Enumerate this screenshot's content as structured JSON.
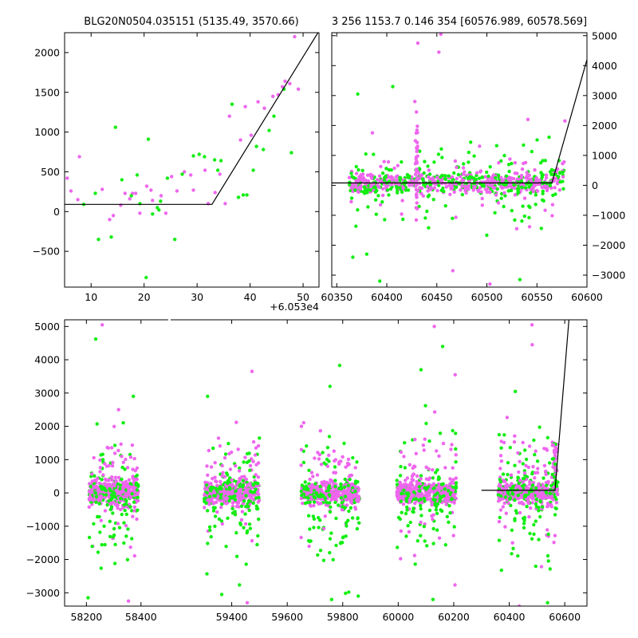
{
  "chart_data": [
    {
      "type": "scatter",
      "title": "BLG20N0504.035151 (5135.49, 3570.66)",
      "xlim": [
        5,
        53
      ],
      "ylim": [
        -950,
        2250
      ],
      "xticks": [
        10,
        20,
        30,
        40,
        50
      ],
      "yticks": [
        -500,
        0,
        500,
        1000,
        1500,
        2000
      ],
      "x_offset_label": "+6.053e4",
      "colors": {
        "series_a": "#ee66ee",
        "series_b": "#11ee11",
        "model": "#000000"
      },
      "series": [
        {
          "color_key": "series_a",
          "x": [
            5.5,
            6.2,
            7.5,
            7.8,
            12.1,
            13.5,
            14.2,
            15.6,
            16.4,
            17.3,
            17.8,
            18.4,
            19.2,
            20.5,
            21.3,
            21.6,
            23.2,
            24.1,
            25.2,
            26.2,
            27.6,
            28.8,
            29.3,
            31.5,
            32.1,
            33.4,
            34.3,
            35.3,
            36.1,
            38.2,
            39.1,
            40.2,
            41.5,
            42.7,
            44.3,
            45.3,
            46.1,
            46.6,
            47.5,
            48.4,
            49.1
          ],
          "y": [
            420,
            260,
            150,
            690,
            280,
            -100,
            -50,
            80,
            230,
            160,
            230,
            230,
            -20,
            320,
            270,
            140,
            200,
            -20,
            440,
            260,
            500,
            460,
            270,
            520,
            100,
            240,
            470,
            100,
            1200,
            900,
            1320,
            960,
            1380,
            1300,
            1450,
            1470,
            1570,
            1640,
            1610,
            2200,
            1540
          ]
        },
        {
          "color_key": "series_b",
          "x": [
            8.6,
            10.8,
            13.8,
            14.6,
            15.8,
            17.6,
            18.7,
            19.2,
            20.4,
            20.8,
            21.6,
            22.5,
            23.1,
            24.4,
            25.8,
            27.2,
            29.3,
            30.4,
            31.4,
            33.3,
            34.5,
            36.6,
            37.8,
            38.7,
            39.4,
            40.6,
            42.5,
            43.6,
            44.5,
            46.4,
            47.8
          ],
          "y": [
            90,
            230,
            -320,
            1060,
            400,
            200,
            460,
            100,
            -830,
            910,
            -30,
            50,
            130,
            420,
            -350,
            470,
            700,
            720,
            690,
            650,
            640,
            1350,
            180,
            210,
            210,
            520,
            780,
            1020,
            1200,
            1540,
            740
          ]
        },
        {
          "color_key": "series_b",
          "x": [
            11.4,
            22.8,
            33.9,
            41.2
          ],
          "y": [
            -350,
            20,
            520,
            820
          ]
        }
      ],
      "model_line": {
        "x": [
          5,
          32.8,
          52.8
        ],
        "y": [
          90,
          90,
          2250
        ]
      }
    },
    {
      "type": "scatter",
      "title": "3 256 1153.7 0.146 354 [60576.989, 60578.569]",
      "xlim": [
        60345,
        60600
      ],
      "ylim": [
        -3400,
        5100
      ],
      "xticks": [
        60350,
        60400,
        60450,
        60500,
        60550,
        60600
      ],
      "yticks": [
        -3000,
        -2000,
        -1000,
        0,
        1000,
        2000,
        3000,
        4000,
        5000
      ],
      "model_line": {
        "x": [
          60345,
          60565,
          60600
        ],
        "y": [
          80,
          80,
          4200
        ]
      },
      "outliers": [
        {
          "c": "series_a",
          "x": 60431,
          "y": 4750
        },
        {
          "c": "series_a",
          "x": 60454,
          "y": 5050
        },
        {
          "c": "series_a",
          "x": 60452,
          "y": 4450
        },
        {
          "c": "series_b",
          "x": 60371,
          "y": 3050
        },
        {
          "c": "series_b",
          "x": 60406,
          "y": 3300
        },
        {
          "c": "series_a",
          "x": 60428,
          "y": 2800
        },
        {
          "c": "series_a",
          "x": 60541,
          "y": 2200
        },
        {
          "c": "series_a",
          "x": 60578,
          "y": 2150
        },
        {
          "c": "series_b",
          "x": 60366,
          "y": -2400
        },
        {
          "c": "series_b",
          "x": 60380,
          "y": -2300
        },
        {
          "c": "series_b",
          "x": 60393,
          "y": -3200
        },
        {
          "c": "series_a",
          "x": 60466,
          "y": -2850
        },
        {
          "c": "series_b",
          "x": 60474,
          "y": -3450
        },
        {
          "c": "series_b",
          "x": 60533,
          "y": -3150
        },
        {
          "c": "series_a",
          "x": 60503,
          "y": -3300
        }
      ]
    },
    {
      "type": "scatter",
      "xlim": [
        58120,
        60680
      ],
      "ylim": [
        -3400,
        5200
      ],
      "xticks": [
        58200,
        58400,
        59400,
        59600,
        59800,
        60000,
        60200,
        60400,
        60600
      ],
      "yticks": [
        -3000,
        -2000,
        -1000,
        0,
        1000,
        2000,
        3000,
        4000,
        5000
      ],
      "seasons": [
        {
          "x": [
            58210,
            58390
          ]
        },
        {
          "x": [
            59300,
            59500
          ]
        },
        {
          "x": [
            59650,
            59860
          ]
        },
        {
          "x": [
            59995,
            60210
          ]
        },
        {
          "x": [
            60360,
            60575
          ]
        }
      ],
      "model_line": {
        "x": [
          60300,
          60565,
          60615
        ],
        "y": [
          80,
          80,
          5200
        ]
      },
      "outliers": [
        {
          "c": "series_a",
          "x": 58258,
          "y": 5050
        },
        {
          "c": "series_b",
          "x": 58234,
          "y": 4620
        },
        {
          "c": "series_b",
          "x": 58372,
          "y": 2900
        },
        {
          "c": "series_a",
          "x": 58318,
          "y": 2500
        },
        {
          "c": "series_b",
          "x": 59313,
          "y": 2900
        },
        {
          "c": "series_a",
          "x": 59473,
          "y": 3650
        },
        {
          "c": "series_b",
          "x": 59754,
          "y": 3200
        },
        {
          "c": "series_b",
          "x": 59789,
          "y": 3830
        },
        {
          "c": "series_a",
          "x": 60130,
          "y": 5000
        },
        {
          "c": "series_b",
          "x": 60082,
          "y": 3700
        },
        {
          "c": "series_b",
          "x": 60160,
          "y": 4400
        },
        {
          "c": "series_a",
          "x": 60205,
          "y": 3550
        },
        {
          "c": "series_a",
          "x": 60482,
          "y": 5050
        },
        {
          "c": "series_b",
          "x": 60422,
          "y": 3050
        },
        {
          "c": "series_a",
          "x": 60483,
          "y": 4450
        },
        {
          "c": "series_b",
          "x": 58206,
          "y": -3150
        },
        {
          "c": "series_a",
          "x": 58354,
          "y": -3250
        },
        {
          "c": "series_b",
          "x": 59364,
          "y": -3050
        },
        {
          "c": "series_a",
          "x": 59456,
          "y": -3300
        },
        {
          "c": "series_b",
          "x": 59760,
          "y": -3200
        },
        {
          "c": "series_b",
          "x": 59856,
          "y": -3100
        },
        {
          "c": "series_b",
          "x": 60125,
          "y": -3200
        },
        {
          "c": "series_a",
          "x": 60436,
          "y": -3400
        },
        {
          "c": "series_b",
          "x": 60538,
          "y": -3300
        }
      ]
    }
  ]
}
